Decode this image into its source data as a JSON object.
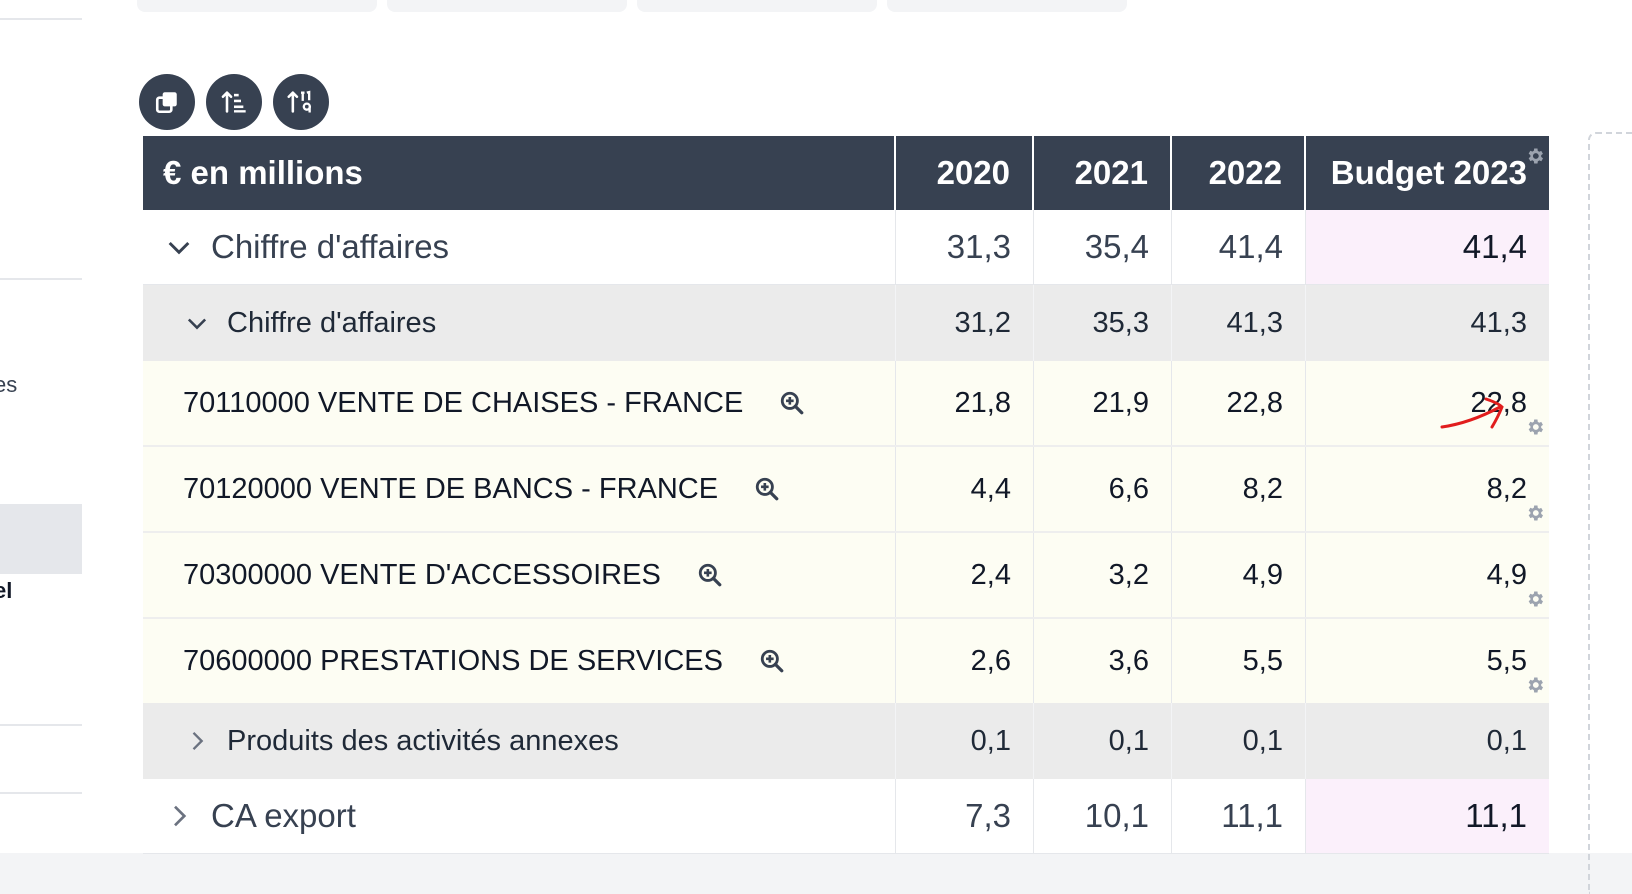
{
  "sidebar": {
    "partial_labels": [
      "es",
      "el"
    ]
  },
  "toolbar": {
    "buttons": [
      {
        "icon": "copy-icon"
      },
      {
        "icon": "sort-list-icon"
      },
      {
        "icon": "sort-numeric-icon"
      }
    ]
  },
  "table": {
    "header": {
      "label": "€ en millions",
      "columns": [
        "2020",
        "2021",
        "2022",
        "Budget 2023"
      ]
    },
    "rows": [
      {
        "level": "top",
        "expanded": true,
        "label": "Chiffre d'affaires",
        "values": [
          "31,3",
          "35,4",
          "41,4",
          "41,4"
        ]
      },
      {
        "level": "sub",
        "expanded": true,
        "label": "Chiffre d'affaires",
        "values": [
          "31,2",
          "35,3",
          "41,3",
          "41,3"
        ]
      },
      {
        "level": "account",
        "label": "70110000 VENTE DE CHAISES - FRANCE",
        "values": [
          "21,8",
          "21,9",
          "22,8",
          "22,8"
        ]
      },
      {
        "level": "account",
        "label": "70120000 VENTE DE BANCS - FRANCE",
        "values": [
          "4,4",
          "6,6",
          "8,2",
          "8,2"
        ]
      },
      {
        "level": "account",
        "label": "70300000 VENTE D'ACCESSOIRES",
        "values": [
          "2,4",
          "3,2",
          "4,9",
          "4,9"
        ]
      },
      {
        "level": "account",
        "label": "70600000 PRESTATIONS DE SERVICES",
        "values": [
          "2,6",
          "3,6",
          "5,5",
          "5,5"
        ]
      },
      {
        "level": "sub",
        "expanded": false,
        "label": "Produits des activités annexes",
        "values": [
          "0,1",
          "0,1",
          "0,1",
          "0,1"
        ]
      },
      {
        "level": "top",
        "expanded": false,
        "label": "CA export",
        "values": [
          "7,3",
          "10,1",
          "11,1",
          "11,1"
        ]
      }
    ]
  },
  "colors": {
    "header_bg": "#374151",
    "budget_highlight": "#fbf0fb",
    "account_row_bg": "#fdfdf3",
    "subtotal_bg": "#ebebeb",
    "annotation_arrow": "#e11d1d"
  }
}
